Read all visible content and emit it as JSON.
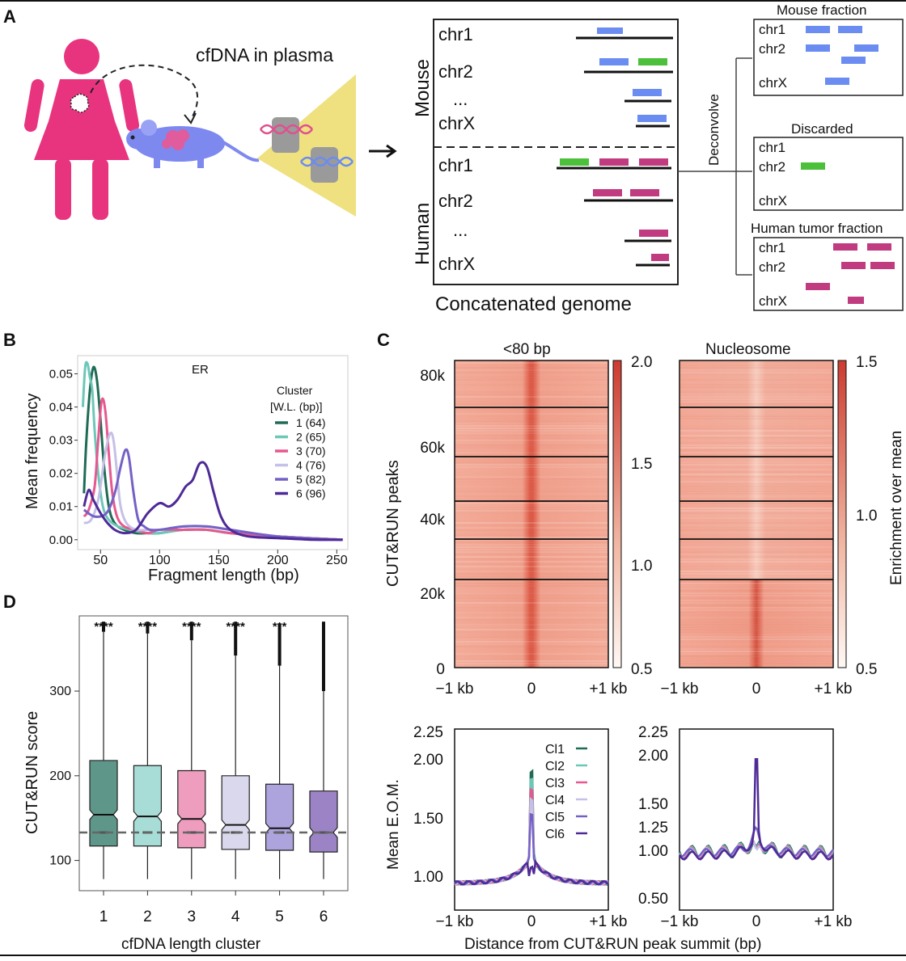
{
  "panels": {
    "A": {
      "label": "A",
      "cfdna_title": "cfDNA in plasma",
      "mouse_label": "Mouse",
      "human_label": "Human",
      "chroms": [
        "chr1",
        "chr2",
        "...",
        "chrX"
      ],
      "concat_label": "Concatenated genome",
      "deconvolve_label": "Deconvolve",
      "mouse_fraction": "Mouse fraction",
      "discarded": "Discarded",
      "human_tumor_fraction": "Human tumor fraction",
      "colors": {
        "mouse": "#6b8cf0",
        "human": "#c03b80",
        "ambiguous": "#4cc03a",
        "woman": "#e8347f",
        "mouse_body": "#7e89f0",
        "cone": "#efe080"
      }
    },
    "B": {
      "label": "B",
      "chart_data": {
        "type": "line",
        "title": "ER",
        "xlabel": "Fragment length (bp)",
        "ylabel": "Mean frequency",
        "xlim": [
          32,
          258
        ],
        "ylim": [
          -0.002,
          0.055
        ],
        "x_ticks": [
          50,
          100,
          150,
          200,
          250
        ],
        "y_ticks": [
          0.0,
          0.01,
          0.02,
          0.03,
          0.04,
          0.05
        ],
        "y_tick_labels": [
          "0.00",
          "0.01",
          "0.02",
          "0.03",
          "0.04",
          "0.05"
        ],
        "legend_title_1": "Cluster",
        "legend_title_2": "[W.L. (bp)]",
        "series": [
          {
            "name": "1",
            "wl": "(64)",
            "color": "#1f6b55",
            "x": [
              36,
              38,
              41,
              44,
              47,
              50,
              53,
              57,
              62,
              70,
              80,
              90,
              100,
              120,
              140,
              160,
              200,
              255
            ],
            "y": [
              0.014,
              0.03,
              0.045,
              0.052,
              0.048,
              0.036,
              0.022,
              0.01,
              0.005,
              0.003,
              0.002,
              0.002,
              0.002,
              0.003,
              0.003,
              0.002,
              0.001,
              0.0
            ]
          },
          {
            "name": "2",
            "wl": "(65)",
            "color": "#6dc7b8",
            "x": [
              35,
              37,
              39,
              41,
              43,
              45,
              48,
              52,
              57,
              65,
              75,
              90,
              100,
              120,
              140,
              160,
              200,
              255
            ],
            "y": [
              0.04,
              0.052,
              0.053,
              0.049,
              0.045,
              0.033,
              0.02,
              0.01,
              0.006,
              0.004,
              0.003,
              0.002,
              0.002,
              0.003,
              0.003,
              0.002,
              0.001,
              0.0
            ]
          },
          {
            "name": "3",
            "wl": "(70)",
            "color": "#e6588f",
            "x": [
              36,
              40,
              45,
              48,
              51,
              54,
              57,
              60,
              64,
              70,
              80,
              90,
              100,
              120,
              140,
              160,
              200,
              255
            ],
            "y": [
              0.007,
              0.009,
              0.016,
              0.03,
              0.042,
              0.039,
              0.026,
              0.014,
              0.007,
              0.004,
              0.003,
              0.002,
              0.003,
              0.003,
              0.003,
              0.002,
              0.001,
              0.0
            ]
          },
          {
            "name": "4",
            "wl": "(76)",
            "color": "#c5c0e6",
            "x": [
              36,
              42,
              48,
              54,
              58,
              61,
              64,
              67,
              72,
              80,
              90,
              100,
              120,
              140,
              160,
              200,
              255
            ],
            "y": [
              0.005,
              0.006,
              0.012,
              0.026,
              0.032,
              0.03,
              0.02,
              0.01,
              0.005,
              0.003,
              0.003,
              0.003,
              0.004,
              0.004,
              0.003,
              0.001,
              0.0
            ]
          },
          {
            "name": "5",
            "wl": "(82)",
            "color": "#7561c6",
            "x": [
              36,
              45,
              55,
              62,
              67,
              71,
              74,
              78,
              82,
              87,
              92,
              100,
              120,
              140,
              160,
              200,
              255
            ],
            "y": [
              0.009,
              0.007,
              0.008,
              0.014,
              0.022,
              0.027,
              0.025,
              0.014,
              0.006,
              0.004,
              0.003,
              0.003,
              0.004,
              0.004,
              0.003,
              0.001,
              0.0
            ]
          },
          {
            "name": "6",
            "wl": "(96)",
            "color": "#4e2a96",
            "x": [
              36,
              40,
              44,
              50,
              56,
              62,
              70,
              80,
              90,
              100,
              108,
              115,
              122,
              128,
              134,
              140,
              146,
              152,
              160,
              175,
              200,
              230,
              255
            ],
            "y": [
              0.01,
              0.015,
              0.012,
              0.008,
              0.005,
              0.003,
              0.002,
              0.003,
              0.008,
              0.011,
              0.01,
              0.012,
              0.016,
              0.018,
              0.023,
              0.022,
              0.014,
              0.007,
              0.003,
              0.001,
              0.0005,
              0.0,
              0.0
            ]
          }
        ]
      }
    },
    "C": {
      "label": "C",
      "heatmap_left_title": "<80 bp",
      "heatmap_right_title": "Nucleosome",
      "y_axis_label": "CUT&RUN peaks",
      "y_ticks": [
        "80k",
        "60k",
        "40k",
        "20k",
        "0"
      ],
      "x_ticks": [
        "−1 kb",
        "0",
        "+1 kb"
      ],
      "colorbar_left_ticks": [
        "2.0",
        "1.5",
        "1.0",
        "0.5"
      ],
      "colorbar_right_ticks": [
        "1.5",
        "1.0",
        "0.5"
      ],
      "colorbar_label": "Enrichment over mean",
      "profile_ylabel": "Mean E.O.M.",
      "profile_xlabel": "Distance from CUT&RUN peak summit (bp)",
      "profile_left_yticks": [
        "2.25",
        "2.00",
        "1.50",
        "1.00"
      ],
      "profile_right_yticks": [
        "2.25",
        "2.00",
        "1.50",
        "1.25",
        "1.00",
        "0.50"
      ],
      "legend": [
        "Cl1",
        "Cl2",
        "Cl3",
        "Cl4",
        "Cl5",
        "Cl6"
      ],
      "legend_colors": [
        "#1f6b55",
        "#6dc7b8",
        "#e6588f",
        "#c5c0e6",
        "#7561c6",
        "#4e2a96"
      ]
    },
    "D": {
      "label": "D",
      "chart_data": {
        "type": "box",
        "xlabel": "cfDNA length cluster",
        "ylabel": "CUT&RUN score",
        "ylim": [
          70,
          385
        ],
        "y_ticks": [
          100,
          200,
          300
        ],
        "reference_line": 133,
        "categories": [
          "1",
          "2",
          "3",
          "4",
          "5",
          "6"
        ],
        "significance": [
          "****",
          "****",
          "****",
          "****",
          "***",
          ""
        ],
        "colors": [
          "#5e978a",
          "#a7ddd6",
          "#ee9dbe",
          "#d9d8ed",
          "#ada4dd",
          "#9c83c6"
        ],
        "boxes": [
          {
            "q1": 117,
            "median": 154,
            "q3": 218,
            "mean": 133,
            "whisker_low": 78,
            "whisker_high": 370,
            "outlier_top": 382
          },
          {
            "q1": 117,
            "median": 152,
            "q3": 212,
            "mean": 133,
            "whisker_low": 78,
            "whisker_high": 368,
            "outlier_top": 382
          },
          {
            "q1": 115,
            "median": 149,
            "q3": 206,
            "mean": 133,
            "whisker_low": 78,
            "whisker_high": 360,
            "outlier_top": 382
          },
          {
            "q1": 113,
            "median": 142,
            "q3": 200,
            "mean": 133,
            "whisker_low": 78,
            "whisker_high": 342,
            "outlier_top": 382
          },
          {
            "q1": 112,
            "median": 138,
            "q3": 190,
            "mean": 133,
            "whisker_low": 78,
            "whisker_high": 330,
            "outlier_top": 380
          },
          {
            "q1": 110,
            "median": 133,
            "q3": 182,
            "mean": 133,
            "whisker_low": 78,
            "whisker_high": 300,
            "outlier_top": 382
          }
        ]
      }
    }
  }
}
